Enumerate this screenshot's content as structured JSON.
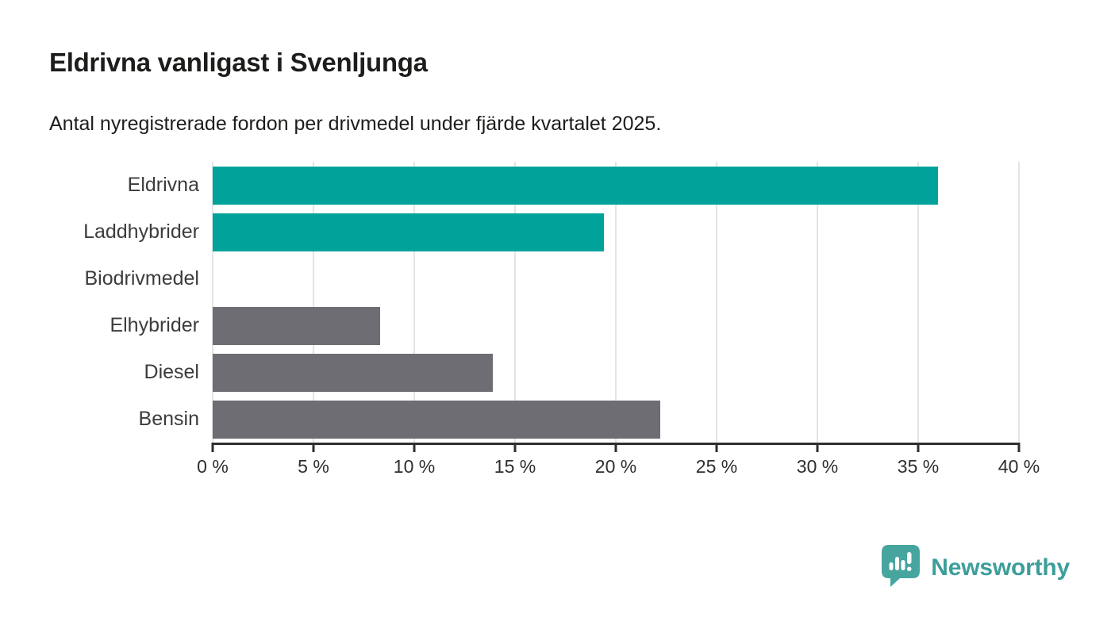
{
  "header": {
    "title": "Eldrivna vanligast i Svenljunga",
    "subtitle": "Antal nyregistrerade fordon per drivmedel under fjärde kvartalet 2025."
  },
  "chart_data": {
    "type": "bar",
    "orientation": "horizontal",
    "title": "Eldrivna vanligast i Svenljunga",
    "subtitle": "Antal nyregistrerade fordon per drivmedel under fjärde kvartalet 2025.",
    "categories": [
      "Eldrivna",
      "Laddhybrider",
      "Biodrivmedel",
      "Elhybrider",
      "Diesel",
      "Bensin"
    ],
    "values": [
      36.0,
      19.4,
      0,
      8.3,
      13.9,
      22.2
    ],
    "unit": "%",
    "colors": [
      "#00a29a",
      "#00a29a",
      "#6e6d73",
      "#6e6d73",
      "#6e6d73",
      "#6e6d73"
    ],
    "highlight_color": "#00a29a",
    "default_color": "#6e6d73",
    "xlabel": "",
    "ylabel": "",
    "xlim": [
      0,
      40
    ],
    "x_ticks": [
      "0 %",
      "5 %",
      "10 %",
      "15 %",
      "20 %",
      "25 %",
      "30 %",
      "35 %",
      "40 %"
    ],
    "x_tick_values": [
      0,
      5,
      10,
      15,
      20,
      25,
      30,
      35,
      40
    ],
    "grid": true,
    "gridline_color": "#e4e4e4",
    "axis_color": "#2f2f2f",
    "legend_position": "none"
  },
  "footer": {
    "brand": "Newsworthy",
    "logo_icon": "bar-chart-speech-bubble-icon",
    "brand_color": "#3d9e9a",
    "badge_color": "#47a5a0"
  }
}
